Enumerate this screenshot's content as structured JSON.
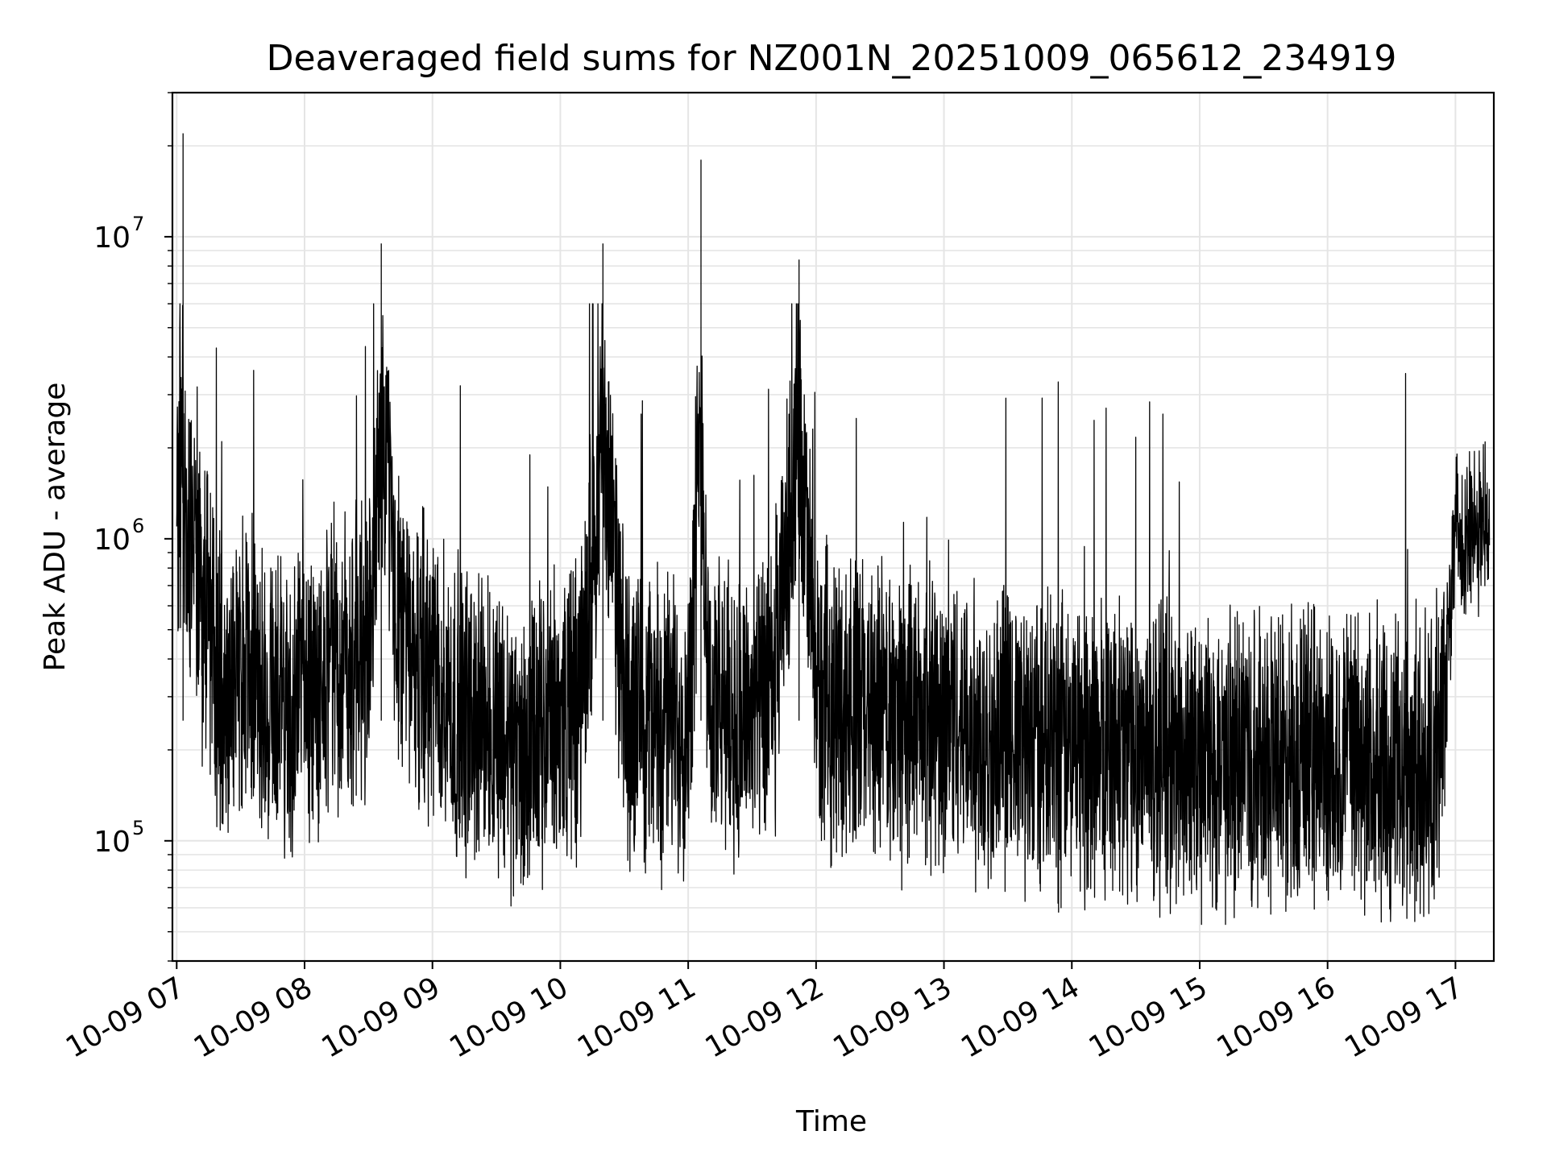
{
  "chart_data": {
    "type": "line",
    "title": "Deaveraged field sums for NZ001N_20251009_065612_234919",
    "xlabel": "Time",
    "ylabel": "Peak ADU - average",
    "x_scale": "time",
    "y_scale": "log",
    "xlim": [
      "2025-10-09 06:58",
      "2025-10-09 17:18"
    ],
    "ylim": [
      40000,
      30000000
    ],
    "grid": true,
    "legend": "none",
    "line_color": "#000000",
    "grid_color": "#e5e5e5",
    "x_ticks": [
      {
        "value": "2025-10-09 07:00",
        "label": "10-09 07"
      },
      {
        "value": "2025-10-09 08:00",
        "label": "10-09 08"
      },
      {
        "value": "2025-10-09 09:00",
        "label": "10-09 09"
      },
      {
        "value": "2025-10-09 10:00",
        "label": "10-09 10"
      },
      {
        "value": "2025-10-09 11:00",
        "label": "10-09 11"
      },
      {
        "value": "2025-10-09 12:00",
        "label": "10-09 12"
      },
      {
        "value": "2025-10-09 13:00",
        "label": "10-09 13"
      },
      {
        "value": "2025-10-09 14:00",
        "label": "10-09 14"
      },
      {
        "value": "2025-10-09 15:00",
        "label": "10-09 15"
      },
      {
        "value": "2025-10-09 16:00",
        "label": "10-09 16"
      },
      {
        "value": "2025-10-09 17:00",
        "label": "10-09 17"
      }
    ],
    "y_ticks": [
      {
        "value": 100000,
        "base": "10",
        "exp": "5"
      },
      {
        "value": 1000000,
        "base": "10",
        "exp": "6"
      },
      {
        "value": 10000000,
        "base": "10",
        "exp": "7"
      }
    ],
    "series": [
      {
        "x": [
          "2025-10-09 07:00",
          "2025-10-09 07:03",
          "2025-10-09 07:05",
          "2025-10-09 07:08",
          "2025-10-09 07:10",
          "2025-10-09 07:15",
          "2025-10-09 07:20",
          "2025-10-09 07:25",
          "2025-10-09 07:30",
          "2025-10-09 07:35",
          "2025-10-09 07:40",
          "2025-10-09 07:45",
          "2025-10-09 07:50",
          "2025-10-09 07:55",
          "2025-10-09 08:00",
          "2025-10-09 08:10",
          "2025-10-09 08:20",
          "2025-10-09 08:30",
          "2025-10-09 08:36",
          "2025-10-09 08:45",
          "2025-10-09 09:00",
          "2025-10-09 09:15",
          "2025-10-09 09:30",
          "2025-10-09 09:41",
          "2025-10-09 09:50",
          "2025-10-09 10:00",
          "2025-10-09 10:10",
          "2025-10-09 10:20",
          "2025-10-09 10:30",
          "2025-10-09 10:45",
          "2025-10-09 11:00",
          "2025-10-09 11:06",
          "2025-10-09 11:10",
          "2025-10-09 11:20",
          "2025-10-09 11:40",
          "2025-10-09 11:52",
          "2025-10-09 12:00",
          "2025-10-09 12:20",
          "2025-10-09 12:40",
          "2025-10-09 13:00",
          "2025-10-09 13:20",
          "2025-10-09 13:40",
          "2025-10-09 14:00",
          "2025-10-09 14:20",
          "2025-10-09 14:40",
          "2025-10-09 15:00",
          "2025-10-09 15:20",
          "2025-10-09 15:40",
          "2025-10-09 16:00",
          "2025-10-09 16:20",
          "2025-10-09 16:40",
          "2025-10-09 16:52",
          "2025-10-09 17:00",
          "2025-10-09 17:10",
          "2025-10-09 17:16"
        ],
        "values": [
          800000,
          22000000,
          900000,
          1200000,
          700000,
          500000,
          350000,
          300000,
          350000,
          400000,
          300000,
          350000,
          280000,
          250000,
          300000,
          350000,
          400000,
          420000,
          9500000,
          450000,
          350000,
          250000,
          250000,
          180000,
          220000,
          250000,
          300000,
          9500000,
          280000,
          250000,
          250000,
          18000000,
          270000,
          260000,
          280000,
          8400000,
          300000,
          280000,
          250000,
          250000,
          220000,
          210000,
          200000,
          210000,
          200000,
          180000,
          190000,
          200000,
          190000,
          180000,
          170000,
          190000,
          1000000,
          1100000,
          1200000
        ]
      }
    ]
  }
}
